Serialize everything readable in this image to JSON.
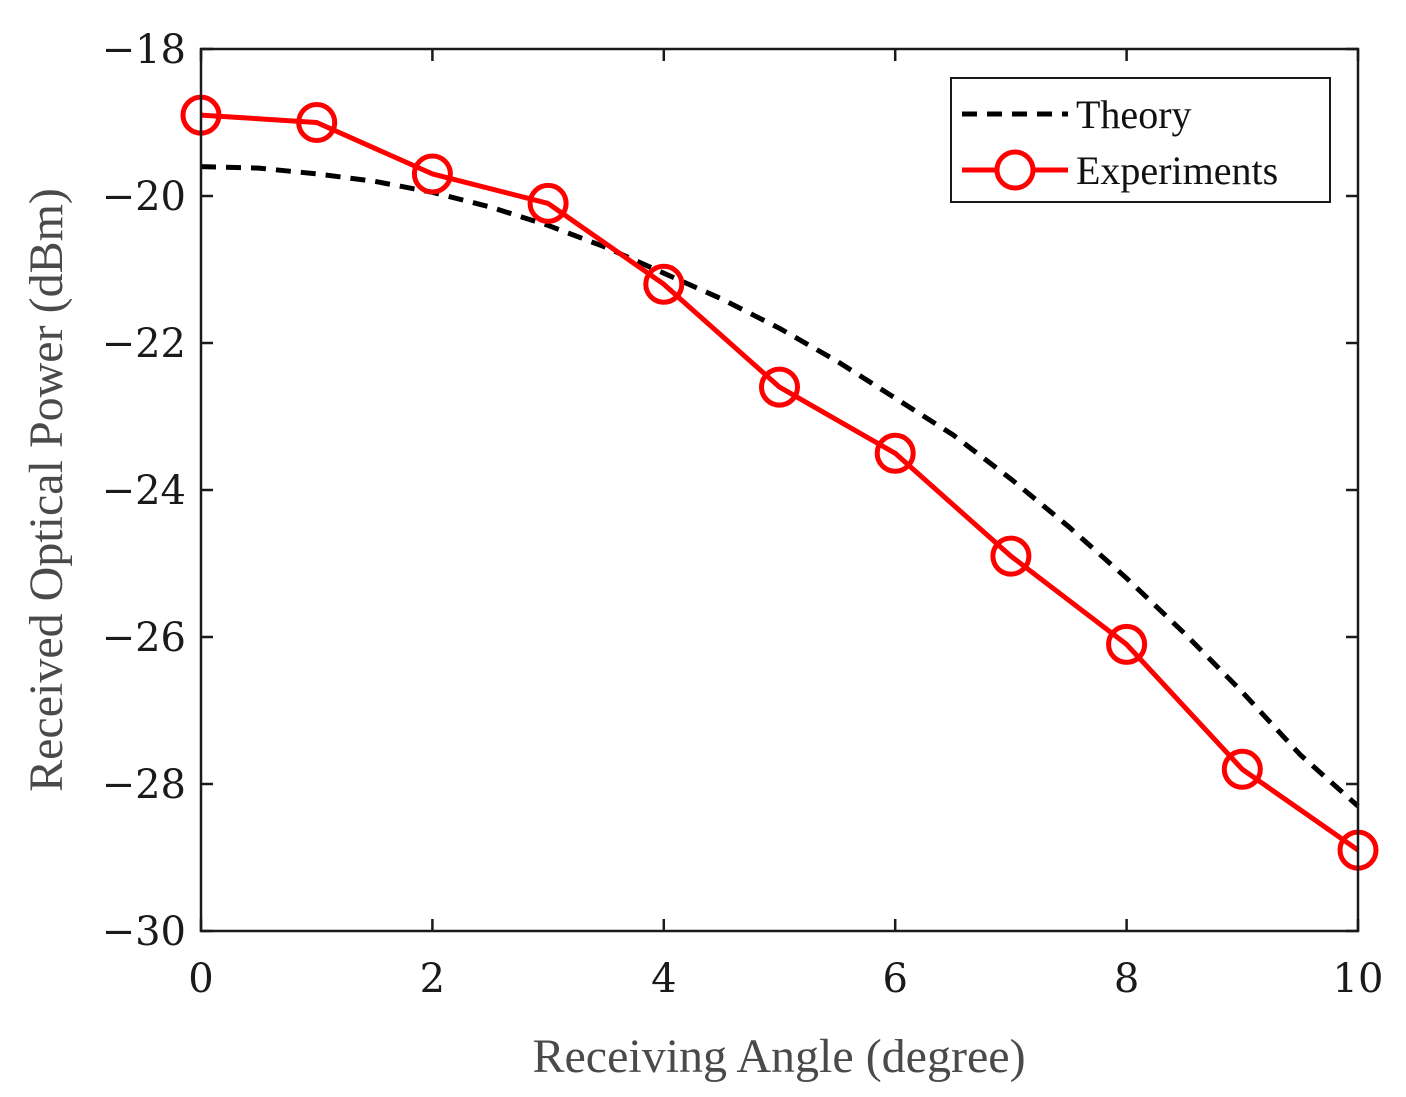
{
  "chart_data": {
    "type": "line",
    "title": "",
    "xlabel": "Receiving Angle (degree)",
    "ylabel": "Received Optical Power (dBm)",
    "xlim": [
      0,
      10
    ],
    "ylim": [
      -30,
      -18
    ],
    "xticks": [
      0,
      2,
      4,
      6,
      8,
      10
    ],
    "yticks": [
      -18,
      -20,
      -22,
      -24,
      -26,
      -28,
      -30
    ],
    "xtick_labels": [
      "0",
      "2",
      "4",
      "6",
      "8",
      "10"
    ],
    "ytick_labels": [
      "−18",
      "−20",
      "−22",
      "−24",
      "−26",
      "−28",
      "−30"
    ],
    "grid": false,
    "legend_position": "top-right",
    "series": [
      {
        "name": "Theory",
        "style": "dashed",
        "color": "#000000",
        "x": [
          0,
          0.5,
          1,
          1.5,
          2,
          2.5,
          3,
          3.5,
          4,
          4.5,
          5,
          5.5,
          6,
          6.5,
          7,
          7.5,
          8,
          8.5,
          9,
          9.5,
          10
        ],
        "values": [
          -19.6,
          -19.62,
          -19.7,
          -19.8,
          -19.95,
          -20.15,
          -20.4,
          -20.7,
          -21.05,
          -21.4,
          -21.8,
          -22.25,
          -22.75,
          -23.25,
          -23.85,
          -24.5,
          -25.2,
          -25.95,
          -26.75,
          -27.6,
          -28.3
        ]
      },
      {
        "name": "Experiments",
        "style": "solid-circle",
        "color": "#ff0000",
        "x": [
          0,
          1,
          2,
          3,
          4,
          5,
          6,
          7,
          8,
          9,
          10
        ],
        "values": [
          -18.9,
          -19.0,
          -19.7,
          -20.1,
          -21.2,
          -22.6,
          -23.5,
          -24.9,
          -26.1,
          -27.8,
          -28.9
        ]
      }
    ]
  }
}
